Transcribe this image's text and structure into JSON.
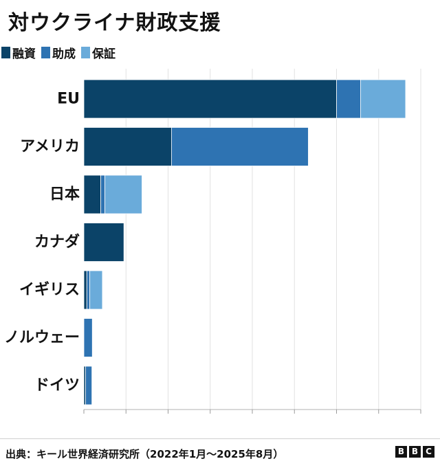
{
  "title": "対ウクライナ財政支援",
  "legend": [
    {
      "label": "融資",
      "color": "#0b4368"
    },
    {
      "label": "助成",
      "color": "#2e73b2"
    },
    {
      "label": "保証",
      "color": "#6aabda"
    }
  ],
  "chart_data": {
    "type": "bar",
    "orientation": "horizontal",
    "stacked": true,
    "categories": [
      "EU",
      "アメリカ",
      "日本",
      "カナダ",
      "イギリス",
      "ノルウェー",
      "ドイツ"
    ],
    "series": [
      {
        "name": "融資",
        "color": "#0b4368",
        "values": [
          60.0,
          20.8,
          4.0,
          9.5,
          0.7,
          0.0,
          0.4
        ]
      },
      {
        "name": "助成",
        "color": "#2e73b2",
        "values": [
          5.7,
          32.5,
          1.0,
          0.0,
          0.7,
          2.0,
          1.5
        ]
      },
      {
        "name": "保証",
        "color": "#6aabda",
        "values": [
          10.7,
          0.0,
          8.8,
          0.0,
          3.0,
          0.0,
          0.0
        ]
      }
    ],
    "xlim": [
      0,
      80
    ],
    "x_ticks": [
      0,
      10,
      20,
      30,
      40,
      50,
      60,
      70,
      80
    ],
    "tick_labels_shown": false,
    "grid": true,
    "legend_position": "top-left"
  },
  "footer": {
    "source": "出典：キール世界経済研究所（2022年1月～2025年8月）",
    "logo": [
      "B",
      "B",
      "C"
    ]
  }
}
